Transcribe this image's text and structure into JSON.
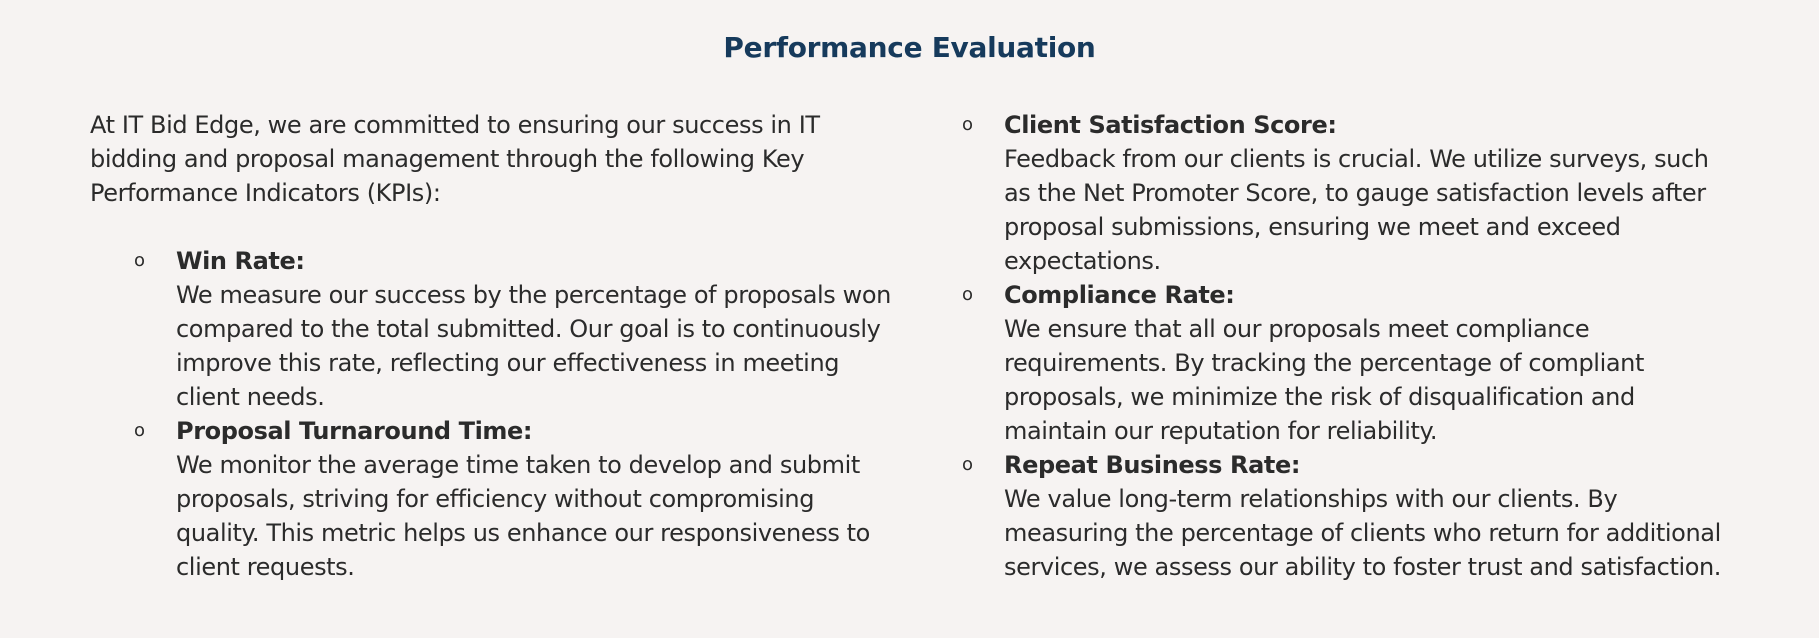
{
  "document": {
    "title": "Performance Evaluation",
    "intro": "At IT Bid Edge, we are committed to ensuring our success in IT bidding and proposal management through the following Key Performance Indicators (KPIs):",
    "bullet_glyph": "o",
    "left_kpis": [
      {
        "name": "Win Rate:",
        "description": "We measure our success by the percentage of proposals won compared to the total submitted. Our goal is to continuously improve this rate, reflecting our effectiveness in meeting client needs."
      },
      {
        "name": "Proposal Turnaround Time:",
        "description": "We monitor the average time taken to develop and submit proposals, striving for efficiency without compromising quality. This metric helps us enhance our responsiveness to client requests."
      }
    ],
    "right_kpis": [
      {
        "name": "Client Satisfaction Score:",
        "description": "Feedback from our clients is crucial. We utilize surveys, such as the Net Promoter Score, to gauge satisfaction levels after proposal submissions, ensuring we meet and exceed expectations."
      },
      {
        "name": "Compliance Rate:",
        "description": "We ensure that all our proposals meet compliance requirements. By tracking the percentage of compliant proposals, we minimize the risk of disqualification and maintain our reputation for reliability."
      },
      {
        "name": "Repeat Business Rate:",
        "description": "We value long-term relationships with our clients. By measuring the percentage of clients who return for additional services, we assess our ability to foster trust and satisfaction."
      }
    ]
  },
  "colors": {
    "background": "#f6f3f2",
    "title": "#163a5c",
    "text": "#2b2b2b"
  }
}
